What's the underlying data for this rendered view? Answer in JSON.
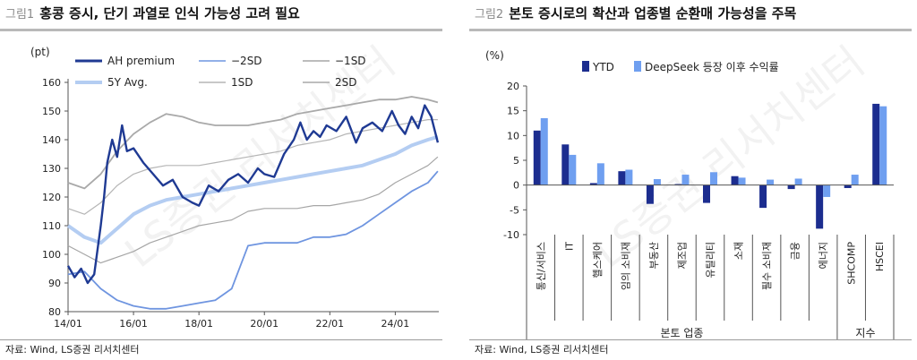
{
  "left": {
    "fig_label": "그림1",
    "title": "홍콩 증시, 단기 과열로 인식 가능성 고려 필요",
    "source": "자료: Wind, LS증권 리서치센터",
    "watermark": "LS증권 리서치센터"
  },
  "right": {
    "fig_label": "그림2",
    "title": "본토 증시로의 확산과 업종별 순환매 가능성을 주목",
    "source": "자료: Wind, LS증권 리서치센터",
    "watermark": "LS증권 리서치센터"
  },
  "colors": {
    "ah": "#1f3a93",
    "minus2sd": "#6f95e0",
    "minus1sd": "#a6a6a6",
    "avg": "#b4cdf2",
    "plus1sd": "#b5b5b5",
    "plus2sd": "#a9a9a9",
    "ytd": "#1c2d8f",
    "deepseek": "#6f9ff0"
  },
  "chart_data": [
    {
      "type": "line",
      "ylabel": "(pt)",
      "ylim": [
        80,
        160
      ],
      "yticks": [
        80,
        90,
        100,
        110,
        120,
        130,
        140,
        150,
        160
      ],
      "xlim": [
        2014.0,
        2025.33
      ],
      "xticks": [
        {
          "label": "14/01",
          "x": 2014.0
        },
        {
          "label": "16/01",
          "x": 2016.0
        },
        {
          "label": "18/01",
          "x": 2018.0
        },
        {
          "label": "20/01",
          "x": 2020.0
        },
        {
          "label": "22/01",
          "x": 2022.0
        },
        {
          "label": "24/01",
          "x": 2024.0
        }
      ],
      "legend": [
        {
          "key": "ah",
          "label": "AH premium"
        },
        {
          "key": "minus2sd",
          "label": "−2SD"
        },
        {
          "key": "minus1sd",
          "label": "−1SD"
        },
        {
          "key": "avg",
          "label": "5Y Avg."
        },
        {
          "key": "plus1sd",
          "label": "1SD"
        },
        {
          "key": "plus2sd",
          "label": "2SD"
        }
      ],
      "series": [
        {
          "key": "ah",
          "name": "AH premium",
          "x": [
            2014.0,
            2014.2,
            2014.4,
            2014.6,
            2014.8,
            2015.0,
            2015.1,
            2015.2,
            2015.35,
            2015.5,
            2015.65,
            2015.8,
            2016.0,
            2016.3,
            2016.6,
            2016.9,
            2017.2,
            2017.5,
            2017.8,
            2018.0,
            2018.3,
            2018.6,
            2018.9,
            2019.2,
            2019.5,
            2019.8,
            2020.0,
            2020.3,
            2020.6,
            2020.9,
            2021.1,
            2021.3,
            2021.5,
            2021.7,
            2021.9,
            2022.2,
            2022.5,
            2022.8,
            2023.0,
            2023.3,
            2023.6,
            2023.9,
            2024.1,
            2024.3,
            2024.5,
            2024.7,
            2024.9,
            2025.1,
            2025.3
          ],
          "y": [
            96,
            92,
            95,
            90,
            93,
            110,
            120,
            132,
            140,
            134,
            145,
            136,
            137,
            132,
            128,
            124,
            126,
            120,
            118,
            117,
            124,
            122,
            126,
            128,
            125,
            130,
            128,
            127,
            135,
            140,
            146,
            140,
            143,
            141,
            145,
            143,
            148,
            139,
            144,
            146,
            143,
            150,
            145,
            142,
            148,
            144,
            152,
            148,
            139
          ]
        },
        {
          "key": "minus2sd",
          "name": "−2SD",
          "x": [
            2014.0,
            2014.5,
            2015.0,
            2015.5,
            2016.0,
            2016.5,
            2017.0,
            2017.5,
            2018.0,
            2018.5,
            2019.0,
            2019.5,
            2020.0,
            2020.5,
            2021.0,
            2021.5,
            2022.0,
            2022.5,
            2023.0,
            2023.5,
            2024.0,
            2024.5,
            2025.0,
            2025.3
          ],
          "y": [
            93,
            94,
            88,
            84,
            82,
            81,
            81,
            82,
            83,
            84,
            88,
            103,
            104,
            104,
            104,
            106,
            106,
            107,
            110,
            114,
            118,
            122,
            125,
            129
          ]
        },
        {
          "key": "minus1sd",
          "name": "−1SD",
          "x": [
            2014.0,
            2014.5,
            2015.0,
            2015.5,
            2016.0,
            2016.5,
            2017.0,
            2017.5,
            2018.0,
            2018.5,
            2019.0,
            2019.5,
            2020.0,
            2020.5,
            2021.0,
            2021.5,
            2022.0,
            2022.5,
            2023.0,
            2023.5,
            2024.0,
            2024.5,
            2025.0,
            2025.3
          ],
          "y": [
            103,
            100,
            97,
            99,
            101,
            104,
            106,
            108,
            110,
            111,
            112,
            115,
            116,
            116,
            116,
            117,
            117,
            118,
            119,
            121,
            125,
            128,
            131,
            134
          ]
        },
        {
          "key": "avg",
          "name": "5Y Avg.",
          "x": [
            2014.0,
            2014.5,
            2015.0,
            2015.5,
            2016.0,
            2016.5,
            2017.0,
            2017.5,
            2018.0,
            2018.5,
            2019.0,
            2019.5,
            2020.0,
            2020.5,
            2021.0,
            2021.5,
            2022.0,
            2022.5,
            2023.0,
            2023.5,
            2024.0,
            2024.5,
            2025.0,
            2025.3
          ],
          "y": [
            110,
            106,
            104,
            109,
            114,
            117,
            119,
            120,
            121,
            122,
            123,
            124,
            125,
            126,
            127,
            128,
            129,
            130,
            131,
            133,
            135,
            138,
            140,
            141
          ]
        },
        {
          "key": "plus1sd",
          "name": "1SD",
          "x": [
            2014.0,
            2014.5,
            2015.0,
            2015.5,
            2016.0,
            2016.5,
            2017.0,
            2017.5,
            2018.0,
            2018.5,
            2019.0,
            2019.5,
            2020.0,
            2020.5,
            2021.0,
            2021.5,
            2022.0,
            2022.5,
            2023.0,
            2023.5,
            2024.0,
            2024.5,
            2025.0,
            2025.3
          ],
          "y": [
            116,
            114,
            118,
            124,
            128,
            130,
            131,
            131,
            131,
            132,
            133,
            134,
            135,
            136,
            138,
            139,
            140,
            142,
            143,
            144,
            145,
            146,
            147,
            147
          ]
        },
        {
          "key": "plus2sd",
          "name": "2SD",
          "x": [
            2014.0,
            2014.5,
            2015.0,
            2015.5,
            2016.0,
            2016.5,
            2017.0,
            2017.5,
            2018.0,
            2018.5,
            2019.0,
            2019.5,
            2020.0,
            2020.5,
            2021.0,
            2021.5,
            2022.0,
            2022.5,
            2023.0,
            2023.5,
            2024.0,
            2024.5,
            2025.0,
            2025.3
          ],
          "y": [
            125,
            123,
            128,
            136,
            142,
            146,
            149,
            148,
            146,
            145,
            145,
            145,
            146,
            147,
            149,
            150,
            151,
            152,
            153,
            154,
            154,
            155,
            154,
            153
          ]
        }
      ]
    },
    {
      "type": "bar",
      "ylabel": "(%)",
      "ylim": [
        -10,
        20
      ],
      "yticks": [
        -10,
        -5,
        0,
        5,
        10,
        15,
        20
      ],
      "categories": [
        "통신/서비스",
        "IT",
        "헬스케어",
        "임의 소비재",
        "부동산",
        "제조업",
        "유틸리티",
        "소재",
        "필수 소비재",
        "금융",
        "에너지",
        "SHCOMP",
        "HSCEI"
      ],
      "series": [
        {
          "key": "ytd",
          "name": "YTD",
          "values": [
            11.0,
            8.2,
            0.4,
            2.8,
            -3.8,
            0.2,
            -3.6,
            1.8,
            -4.6,
            -0.8,
            -8.8,
            -0.6,
            16.4
          ]
        },
        {
          "key": "deepseek",
          "name": "DeepSeek 등장 이후 수익률",
          "values": [
            13.5,
            6.1,
            4.4,
            3.1,
            1.2,
            2.1,
            2.6,
            1.5,
            1.1,
            1.3,
            -2.4,
            2.1,
            15.9
          ]
        }
      ],
      "groups": [
        {
          "label": "본토 업종",
          "from": 0,
          "to": 10
        },
        {
          "label": "지수",
          "from": 11,
          "to": 12
        }
      ]
    }
  ]
}
